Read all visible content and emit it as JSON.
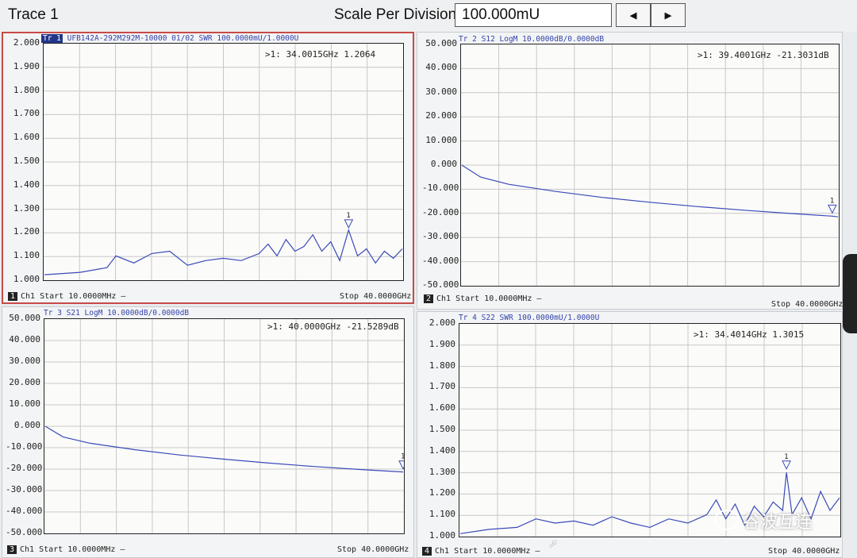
{
  "window": {
    "title": "Trace 1"
  },
  "toolbar": {
    "scale_label": "Scale Per Division",
    "scale_value": "100.000mU",
    "prev_glyph": "◀",
    "next_glyph": "▶"
  },
  "watermark": {
    "text": "谷波互连"
  },
  "colors": {
    "trace": "#3a4ab8",
    "grid": "#c8c8c8",
    "active_border": "#c74a47",
    "label_tag": "#22368a"
  },
  "panels": [
    {
      "label_tag": "Tr 1",
      "label_text": "UFB142A-292M292M-10000 01/02 SWR 100.0000mU/1.0000U",
      "marker_text": ">1:   34.0015GHz 1.2064",
      "channel_num": "1",
      "start_text": "Ch1  Start 10.0000MHz —",
      "stop_text": "Stop 40.0000GHz",
      "yticks": [
        "2.000",
        "1.900",
        "1.800",
        "1.700",
        "1.600",
        "1.500",
        "1.400",
        "1.300",
        "1.200",
        "1.100",
        "1.000"
      ],
      "ylim": [
        1.0,
        2.0
      ]
    },
    {
      "label_tag": "Tr 2",
      "label_text": "S12 LogM 10.0000dB/0.0000dB",
      "marker_text": ">1:   39.4001GHz -21.3031dB",
      "channel_num": "2",
      "start_text": "Ch1  Start 10.0000MHz —",
      "stop_text": "Stop 40.0000GHz",
      "yticks": [
        "50.000",
        "40.000",
        "30.000",
        "20.000",
        "10.000",
        "0.000",
        "-10.000",
        "-20.000",
        "-30.000",
        "-40.000",
        "-50.000"
      ],
      "ylim": [
        -50,
        50
      ]
    },
    {
      "label_tag": "Tr 3",
      "label_text": "S21 LogM 10.0000dB/0.0000dB",
      "marker_text": ">1:   40.0000GHz -21.5289dB",
      "channel_num": "3",
      "start_text": "Ch1  Start 10.0000MHz —",
      "stop_text": "Stop 40.0000GHz",
      "yticks": [
        "50.000",
        "40.000",
        "30.000",
        "20.000",
        "10.000",
        "0.000",
        "-10.000",
        "-20.000",
        "-30.000",
        "-40.000",
        "-50.000"
      ],
      "ylim": [
        -50,
        50
      ]
    },
    {
      "label_tag": "Tr 4",
      "label_text": "S22 SWR 100.0000mU/1.0000U",
      "marker_text": ">1:   34.4014GHz 1.3015",
      "channel_num": "4",
      "start_text": "Ch1  Start 10.0000MHz —",
      "stop_text": "Stop 40.0000GHz",
      "yticks": [
        "2.000",
        "1.900",
        "1.800",
        "1.700",
        "1.600",
        "1.500",
        "1.400",
        "1.300",
        "1.200",
        "1.100",
        "1.000"
      ],
      "ylim": [
        1.0,
        2.0
      ]
    }
  ],
  "chart_data": [
    {
      "type": "line",
      "title": "",
      "xlabel": "",
      "ylabel": "",
      "xlim": [
        0.01,
        40
      ],
      "ylim": [
        1.0,
        2.0
      ],
      "grid": true,
      "series": [
        {
          "x": [
            0.01,
            4,
            7,
            8,
            10,
            12,
            14,
            16,
            18,
            20,
            22,
            24,
            25,
            26,
            27,
            28,
            29,
            30,
            31,
            32,
            33,
            34,
            35,
            36,
            37,
            38,
            39,
            40
          ],
          "values": [
            1.02,
            1.03,
            1.05,
            1.1,
            1.07,
            1.11,
            1.12,
            1.06,
            1.08,
            1.09,
            1.08,
            1.11,
            1.15,
            1.1,
            1.17,
            1.12,
            1.14,
            1.19,
            1.12,
            1.16,
            1.08,
            1.21,
            1.1,
            1.13,
            1.07,
            1.12,
            1.09,
            1.13
          ]
        }
      ],
      "marker": {
        "x": 34.0015,
        "y": 1.2064
      }
    },
    {
      "type": "line",
      "title": "",
      "xlabel": "",
      "ylabel": "",
      "xlim": [
        0.01,
        40
      ],
      "ylim": [
        -50,
        50
      ],
      "grid": true,
      "series": [
        {
          "x": [
            0.01,
            2,
            5,
            10,
            15,
            20,
            25,
            30,
            35,
            39.4,
            40
          ],
          "values": [
            0,
            -5,
            -8,
            -11,
            -13.5,
            -15.5,
            -17.3,
            -18.8,
            -20.2,
            -21.3,
            -21.6
          ]
        }
      ],
      "marker": {
        "x": 39.4001,
        "y": -21.3031
      }
    },
    {
      "type": "line",
      "title": "",
      "xlabel": "",
      "ylabel": "",
      "xlim": [
        0.01,
        40
      ],
      "ylim": [
        -50,
        50
      ],
      "grid": true,
      "series": [
        {
          "x": [
            0.01,
            2,
            5,
            10,
            15,
            20,
            25,
            30,
            35,
            40
          ],
          "values": [
            0,
            -5,
            -8,
            -11,
            -13.5,
            -15.5,
            -17.3,
            -18.9,
            -20.3,
            -21.5
          ]
        }
      ],
      "marker": {
        "x": 40.0,
        "y": -21.5289
      }
    },
    {
      "type": "line",
      "title": "",
      "xlabel": "",
      "ylabel": "",
      "xlim": [
        0.01,
        40
      ],
      "ylim": [
        1.0,
        2.0
      ],
      "grid": true,
      "series": [
        {
          "x": [
            0.01,
            3,
            6,
            8,
            10,
            12,
            14,
            16,
            18,
            20,
            22,
            24,
            26,
            27,
            28,
            29,
            30,
            31,
            32,
            33,
            34,
            34.4,
            35,
            36,
            37,
            38,
            39,
            40
          ],
          "values": [
            1.01,
            1.03,
            1.04,
            1.08,
            1.06,
            1.07,
            1.05,
            1.09,
            1.06,
            1.04,
            1.08,
            1.06,
            1.1,
            1.17,
            1.08,
            1.15,
            1.05,
            1.14,
            1.09,
            1.16,
            1.12,
            1.3,
            1.1,
            1.18,
            1.08,
            1.21,
            1.12,
            1.18
          ]
        }
      ],
      "marker": {
        "x": 34.4014,
        "y": 1.3015
      }
    }
  ]
}
